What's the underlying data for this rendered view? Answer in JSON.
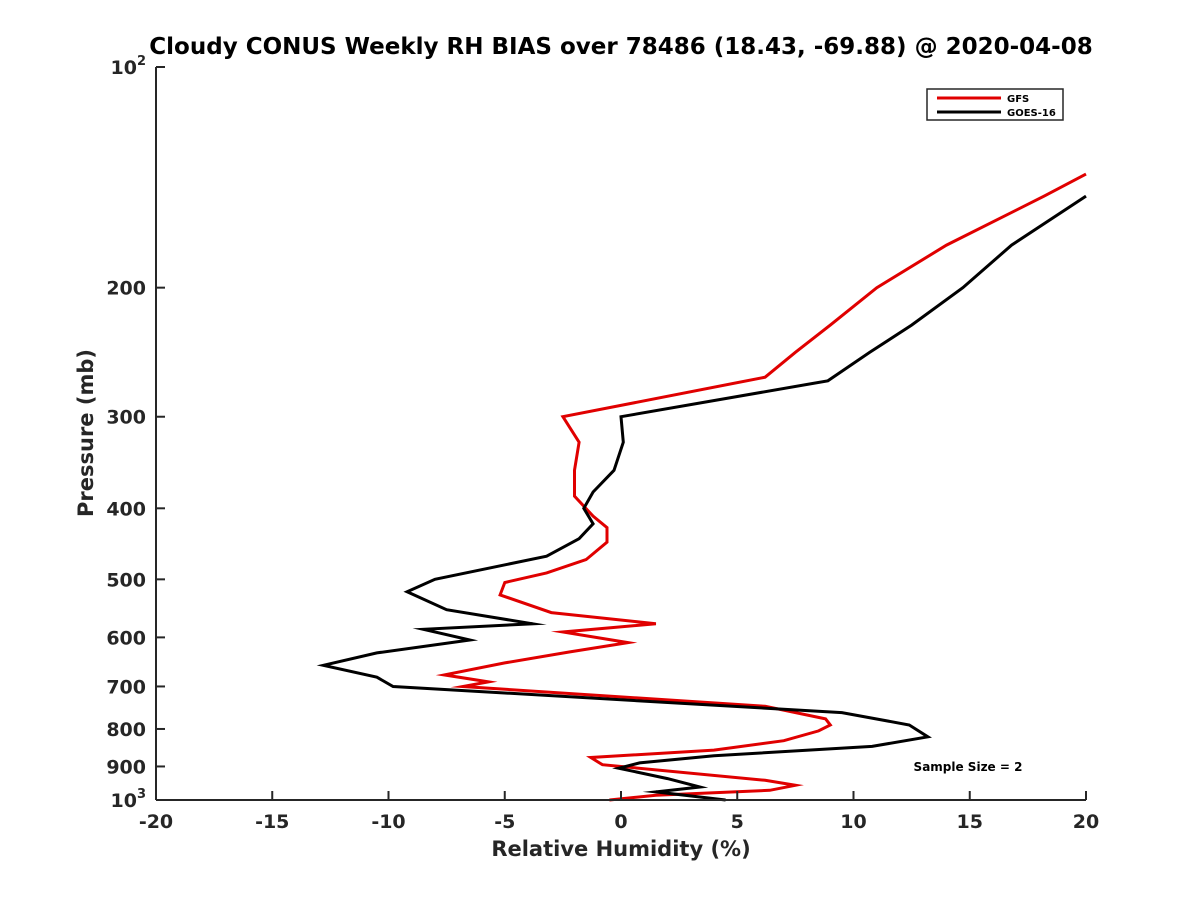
{
  "chart_data": {
    "type": "line",
    "title": "Cloudy CONUS Weekly RH BIAS over 78486 (18.43, -69.88) @ 2020-04-08",
    "xlabel": "Relative Humidity (%)",
    "ylabel": "Pressure (mb)",
    "xlim": [
      -20,
      20
    ],
    "ylim": [
      100,
      1000
    ],
    "y_scale": "log",
    "y_reversed": true,
    "grid": false,
    "legend_position": "top-right",
    "x_ticks": [
      {
        "value": -20,
        "label": "-20"
      },
      {
        "value": -15,
        "label": "-15"
      },
      {
        "value": -10,
        "label": "-10"
      },
      {
        "value": -5,
        "label": "-5"
      },
      {
        "value": 0,
        "label": "0"
      },
      {
        "value": 5,
        "label": "5"
      },
      {
        "value": 10,
        "label": "10"
      },
      {
        "value": 15,
        "label": "15"
      },
      {
        "value": 20,
        "label": "20"
      }
    ],
    "y_ticks": [
      {
        "value": 100,
        "base": "10",
        "exp": "2"
      },
      {
        "value": 200,
        "base": "200",
        "exp": ""
      },
      {
        "value": 300,
        "base": "300",
        "exp": ""
      },
      {
        "value": 400,
        "base": "400",
        "exp": ""
      },
      {
        "value": 500,
        "base": "500",
        "exp": ""
      },
      {
        "value": 600,
        "base": "600",
        "exp": ""
      },
      {
        "value": 700,
        "base": "700",
        "exp": ""
      },
      {
        "value": 800,
        "base": "800",
        "exp": ""
      },
      {
        "value": 900,
        "base": "900",
        "exp": ""
      },
      {
        "value": 1000,
        "base": "10",
        "exp": "3"
      }
    ],
    "annotation": "Sample Size = 2",
    "series": [
      {
        "name": "GFS",
        "color": "#e00000",
        "points": [
          {
            "x": 20.0,
            "p": 140
          },
          {
            "x": 18.2,
            "p": 150
          },
          {
            "x": 14.0,
            "p": 175
          },
          {
            "x": 11.0,
            "p": 200
          },
          {
            "x": 9.0,
            "p": 225
          },
          {
            "x": 7.5,
            "p": 245
          },
          {
            "x": 6.2,
            "p": 265
          },
          {
            "x": -2.5,
            "p": 300
          },
          {
            "x": -1.8,
            "p": 325
          },
          {
            "x": -2.0,
            "p": 355
          },
          {
            "x": -2.0,
            "p": 385
          },
          {
            "x": -1.2,
            "p": 410
          },
          {
            "x": -0.6,
            "p": 425
          },
          {
            "x": -0.6,
            "p": 445
          },
          {
            "x": -1.5,
            "p": 470
          },
          {
            "x": -3.2,
            "p": 490
          },
          {
            "x": -5.0,
            "p": 505
          },
          {
            "x": -5.2,
            "p": 525
          },
          {
            "x": -3.0,
            "p": 555
          },
          {
            "x": 1.5,
            "p": 575
          },
          {
            "x": -2.5,
            "p": 590
          },
          {
            "x": 0.3,
            "p": 610
          },
          {
            "x": -2.2,
            "p": 628
          },
          {
            "x": -5.0,
            "p": 650
          },
          {
            "x": -7.6,
            "p": 675
          },
          {
            "x": -5.7,
            "p": 690
          },
          {
            "x": -6.8,
            "p": 700
          },
          {
            "x": 6.2,
            "p": 745
          },
          {
            "x": 8.8,
            "p": 775
          },
          {
            "x": 9.0,
            "p": 790
          },
          {
            "x": 8.5,
            "p": 805
          },
          {
            "x": 7.0,
            "p": 830
          },
          {
            "x": 4.0,
            "p": 855
          },
          {
            "x": -1.3,
            "p": 875
          },
          {
            "x": -0.8,
            "p": 895
          },
          {
            "x": 6.2,
            "p": 940
          },
          {
            "x": 7.5,
            "p": 955
          },
          {
            "x": 6.4,
            "p": 970
          },
          {
            "x": 1.5,
            "p": 985
          },
          {
            "x": -0.5,
            "p": 1000
          }
        ]
      },
      {
        "name": "GOES-16",
        "color": "#000000",
        "points": [
          {
            "x": 20.0,
            "p": 150
          },
          {
            "x": 16.8,
            "p": 175
          },
          {
            "x": 14.7,
            "p": 200
          },
          {
            "x": 12.5,
            "p": 225
          },
          {
            "x": 10.7,
            "p": 245
          },
          {
            "x": 8.9,
            "p": 268
          },
          {
            "x": 0.0,
            "p": 300
          },
          {
            "x": 0.1,
            "p": 325
          },
          {
            "x": -0.3,
            "p": 355
          },
          {
            "x": -1.2,
            "p": 380
          },
          {
            "x": -1.6,
            "p": 400
          },
          {
            "x": -1.2,
            "p": 420
          },
          {
            "x": -1.8,
            "p": 440
          },
          {
            "x": -3.2,
            "p": 465
          },
          {
            "x": -8.0,
            "p": 500
          },
          {
            "x": -9.2,
            "p": 520
          },
          {
            "x": -7.5,
            "p": 550
          },
          {
            "x": -3.8,
            "p": 575
          },
          {
            "x": -8.5,
            "p": 585
          },
          {
            "x": -6.5,
            "p": 605
          },
          {
            "x": -10.5,
            "p": 630
          },
          {
            "x": -12.8,
            "p": 655
          },
          {
            "x": -10.5,
            "p": 680
          },
          {
            "x": -9.8,
            "p": 700
          },
          {
            "x": 9.5,
            "p": 760
          },
          {
            "x": 12.4,
            "p": 790
          },
          {
            "x": 13.2,
            "p": 820
          },
          {
            "x": 10.8,
            "p": 845
          },
          {
            "x": 4.0,
            "p": 870
          },
          {
            "x": 0.8,
            "p": 890
          },
          {
            "x": -0.1,
            "p": 905
          },
          {
            "x": 2.0,
            "p": 935
          },
          {
            "x": 3.4,
            "p": 960
          },
          {
            "x": 1.5,
            "p": 975
          },
          {
            "x": 4.5,
            "p": 1000
          }
        ]
      }
    ]
  }
}
